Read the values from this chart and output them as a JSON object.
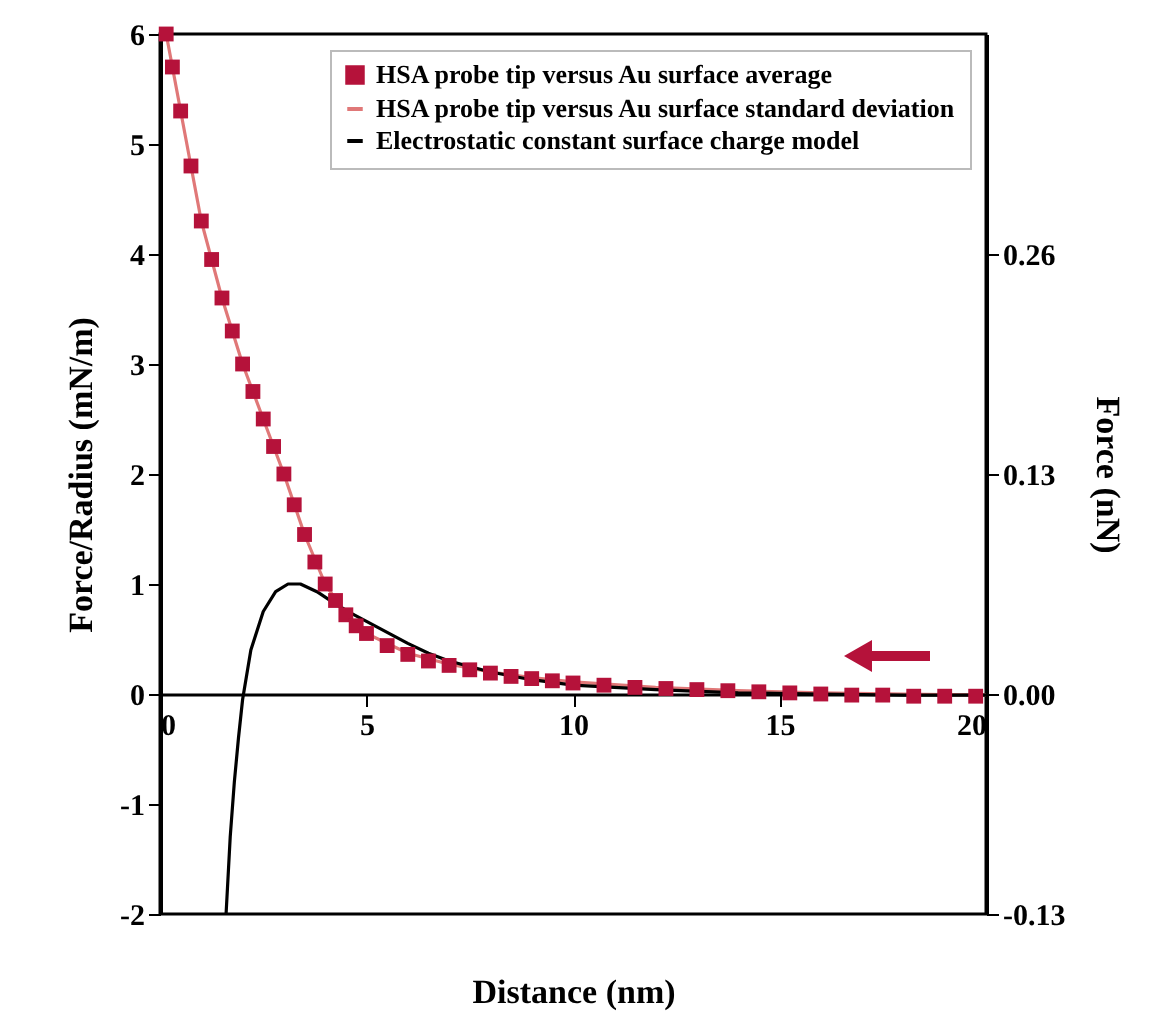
{
  "chart_data": {
    "type": "line",
    "xlabel": "Distance (nm)",
    "ylabel": "Force/Radius (mN/m)",
    "y2label": "Force (nN)",
    "xlim": [
      0,
      20
    ],
    "xticks": [
      0,
      5,
      10,
      15,
      20
    ],
    "ylim": [
      -2,
      6
    ],
    "yticks": [
      -2,
      -1,
      0,
      1,
      2,
      3,
      4,
      5,
      6
    ],
    "y2lim": [
      -0.13,
      0.39
    ],
    "y2ticks": [
      -0.13,
      {
        "value": 0,
        "label": "0.00"
      },
      0.13,
      0.26
    ],
    "legend": "top right",
    "grid": false,
    "series": [
      {
        "name": "HSA probe tip versus Au surface average",
        "type": "scatter",
        "marker": "square",
        "color": "#b5123a",
        "x": [
          0.15,
          0.3,
          0.5,
          0.75,
          1.0,
          1.25,
          1.5,
          1.75,
          2.0,
          2.25,
          2.5,
          2.75,
          3.0,
          3.25,
          3.5,
          3.75,
          4.0,
          4.25,
          4.5,
          4.75,
          5.0,
          5.5,
          6.0,
          6.5,
          7.0,
          7.5,
          8.0,
          8.5,
          9.0,
          9.5,
          10.0,
          10.75,
          11.5,
          12.25,
          13.0,
          13.75,
          14.5,
          15.25,
          16.0,
          16.75,
          17.5,
          18.25,
          19.0,
          19.75
        ],
        "values": [
          6.0,
          5.7,
          5.3,
          4.8,
          4.3,
          3.95,
          3.6,
          3.3,
          3.0,
          2.75,
          2.5,
          2.25,
          2.0,
          1.72,
          1.45,
          1.2,
          1.0,
          0.85,
          0.72,
          0.62,
          0.55,
          0.44,
          0.36,
          0.3,
          0.26,
          0.22,
          0.19,
          0.16,
          0.14,
          0.12,
          0.1,
          0.08,
          0.06,
          0.05,
          0.04,
          0.03,
          0.02,
          0.01,
          0.0,
          -0.01,
          -0.01,
          -0.02,
          -0.02,
          -0.02
        ]
      },
      {
        "name": "HSA probe tip versus Au surface standard deviation",
        "color": "#e07878",
        "x": [
          0.15,
          0.5,
          1.0,
          1.5,
          2.0,
          2.5,
          3.0,
          3.5,
          4.0,
          4.5,
          5.0,
          6.0,
          7.0,
          8.0,
          9.0,
          10.0,
          12.0,
          14.0,
          16.0,
          18.0,
          20.0
        ],
        "values": [
          6.0,
          5.3,
          4.3,
          3.6,
          3.0,
          2.5,
          2.0,
          1.45,
          1.0,
          0.72,
          0.55,
          0.37,
          0.27,
          0.2,
          0.15,
          0.11,
          0.06,
          0.03,
          0.01,
          0.0,
          -0.01
        ]
      },
      {
        "name": "Electrostatic constant surface charge model",
        "color": "#000000",
        "x": [
          1.6,
          1.7,
          1.8,
          1.9,
          2.0,
          2.2,
          2.5,
          2.8,
          3.1,
          3.4,
          3.8,
          4.2,
          4.6,
          5.0,
          5.5,
          6.0,
          6.5,
          7.0,
          8.0,
          9.0,
          10.0,
          12.0,
          14.0,
          16.0,
          18.0,
          20.0
        ],
        "values": [
          -2.0,
          -1.3,
          -0.8,
          -0.4,
          -0.05,
          0.4,
          0.75,
          0.93,
          1.0,
          1.0,
          0.93,
          0.83,
          0.74,
          0.66,
          0.56,
          0.46,
          0.37,
          0.3,
          0.2,
          0.13,
          0.08,
          0.04,
          0.01,
          0.0,
          -0.01,
          -0.01
        ]
      }
    ]
  }
}
